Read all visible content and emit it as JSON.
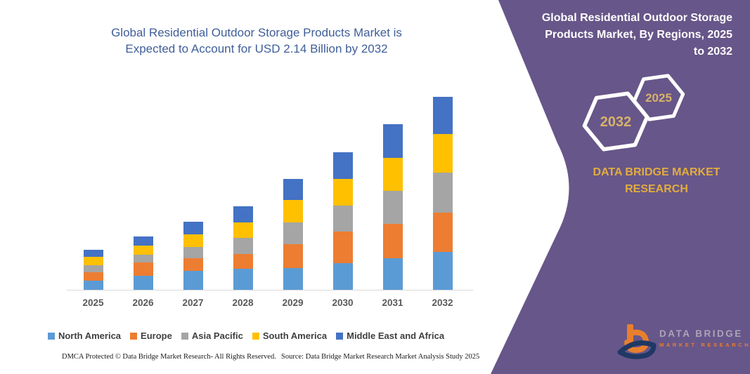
{
  "left": {
    "title_line1": "Global Residential Outdoor Storage Products Market is",
    "title_line2": "Expected to Account for USD 2.14 Billion by 2032",
    "footer_dmca": "DMCA Protected © Data Bridge Market Research-  All Rights Reserved.",
    "footer_source": "Source: Data Bridge Market Research  Market Analysis Study 2025"
  },
  "chart_data": {
    "type": "bar",
    "stacked": true,
    "title": "Global Residential Outdoor Storage Products Market is Expected to Account for USD 2.14 Billion by 2032",
    "unit": "USD Billion",
    "xlabel": "",
    "ylabel": "",
    "ylim": [
      0,
      2.2
    ],
    "grid": false,
    "legend_position": "bottom",
    "axis_color": "#d9d9d9",
    "categories": [
      "2025",
      "2026",
      "2027",
      "2028",
      "2029",
      "2030",
      "2031",
      "2032"
    ],
    "series": [
      {
        "name": "North America",
        "color": "#5b9bd5",
        "values": [
          0.11,
          0.16,
          0.22,
          0.24,
          0.25,
          0.3,
          0.36,
          0.43
        ]
      },
      {
        "name": "Europe",
        "color": "#ed7d31",
        "values": [
          0.09,
          0.15,
          0.14,
          0.16,
          0.26,
          0.35,
          0.38,
          0.43
        ]
      },
      {
        "name": "Asia Pacific",
        "color": "#a5a5a5",
        "values": [
          0.08,
          0.09,
          0.12,
          0.18,
          0.24,
          0.29,
          0.36,
          0.44
        ]
      },
      {
        "name": "South America",
        "color": "#ffc000",
        "values": [
          0.09,
          0.1,
          0.14,
          0.17,
          0.25,
          0.29,
          0.37,
          0.43
        ]
      },
      {
        "name": "Middle East and Africa",
        "color": "#4472c4",
        "values": [
          0.08,
          0.1,
          0.14,
          0.18,
          0.23,
          0.3,
          0.37,
          0.41
        ]
      }
    ]
  },
  "right_panel": {
    "title": "Global Residential Outdoor Storage Products Market, By Regions, 2025 to 2032",
    "hexagons": [
      {
        "label": "2032"
      },
      {
        "label": "2025"
      }
    ],
    "brand_heading": "DATA BRIDGE MARKET RESEARCH",
    "logo": {
      "line1": "DATA BRIDGE",
      "line2": "MARKET RESEARCH"
    },
    "colors": {
      "panel_background": "#675689",
      "heading_gold": "#e2ac3f",
      "hexagon_label_gold": "#d8b26a",
      "title_blue": "#3f5e99",
      "logo_orange": "#e87f2e",
      "logo_navy": "#1f3864"
    }
  }
}
